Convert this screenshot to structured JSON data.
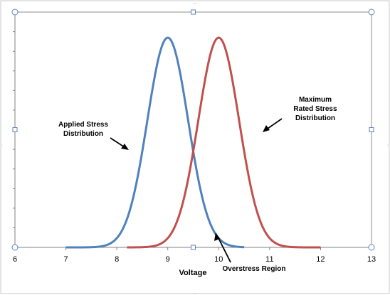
{
  "chart_data": {
    "type": "line",
    "xlabel": "Voltage",
    "ylabel": "",
    "xlim": [
      6,
      13
    ],
    "x_ticks": [
      "6",
      "7",
      "8",
      "9",
      "10",
      "11",
      "12",
      "13"
    ],
    "grid": false,
    "legend": "none",
    "series": [
      {
        "color": "#4f81bd",
        "mean": 9,
        "std_dev": 0.4,
        "x_start": 7,
        "x_end": 10.5,
        "peak": 1
      },
      {
        "color": "#c0504d",
        "mean": 10,
        "std_dev": 0.4,
        "x_start": 8.2,
        "x_end": 12,
        "peak": 1
      }
    ],
    "annotations": [
      {
        "id": "applied",
        "lines": [
          "Applied Stress",
          "Distribution"
        ]
      },
      {
        "id": "rated",
        "lines": [
          "Maximum",
          "Rated Stress",
          "Distribution"
        ]
      },
      {
        "id": "overstress",
        "lines": [
          "Overstress Region"
        ]
      }
    ]
  }
}
